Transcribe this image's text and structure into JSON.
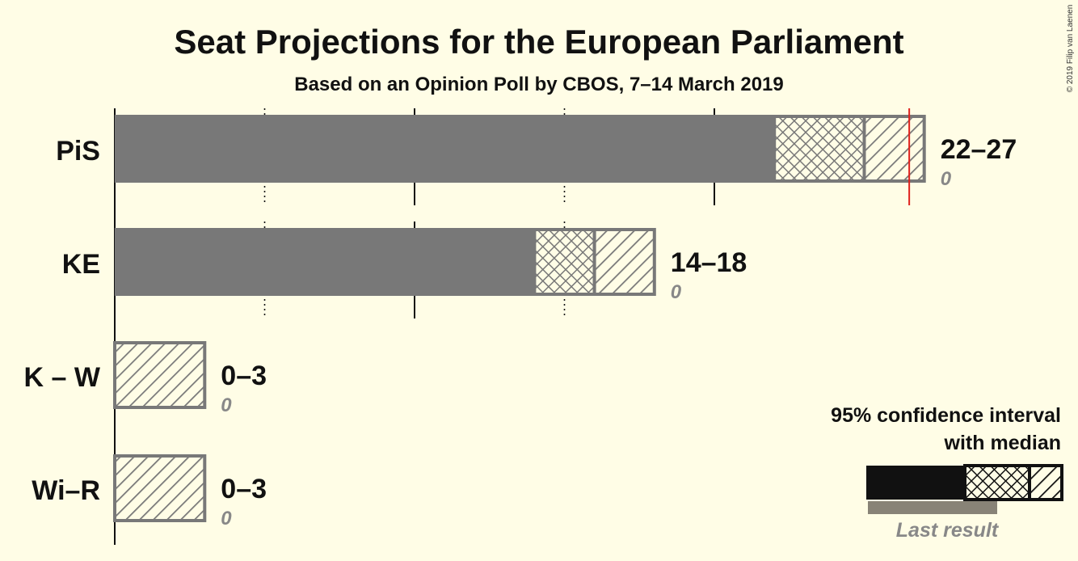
{
  "chart_data": {
    "type": "bar",
    "title": "Seat Projections for the European Parliament",
    "subtitle": "Based on an Opinion Poll by CBOS, 7–14 March 2019",
    "copyright": "© 2019 Filip van Laenen",
    "majority_line": 26.5,
    "xlim": [
      0,
      27
    ],
    "gridlines": [
      5,
      10,
      15,
      20
    ],
    "parties": [
      {
        "name": "PiS",
        "ci_low": 22,
        "ci_high": 27,
        "median_low": 22,
        "median_high": 25,
        "last_result": 0,
        "range_label": "22–27",
        "last_label": "0"
      },
      {
        "name": "KE",
        "ci_low": 14,
        "ci_high": 18,
        "median_low": 14,
        "median_high": 16,
        "last_result": 0,
        "range_label": "14–18",
        "last_label": "0"
      },
      {
        "name": "K – W",
        "ci_low": 0,
        "ci_high": 3,
        "median_low": 0,
        "median_high": 0,
        "last_result": 0,
        "range_label": "0–3",
        "last_label": "0"
      },
      {
        "name": "Wi–R",
        "ci_low": 0,
        "ci_high": 3,
        "median_low": 0,
        "median_high": 0,
        "last_result": 0,
        "range_label": "0–3",
        "last_label": "0"
      }
    ],
    "legend": {
      "line1": "95% confidence interval",
      "line2": "with median",
      "last_result": "Last result"
    },
    "colors": {
      "bar": "#787878",
      "hatch": "#787878",
      "majority": "#e0201b",
      "legend_bar": "#111111",
      "background": "#fffde6"
    }
  }
}
